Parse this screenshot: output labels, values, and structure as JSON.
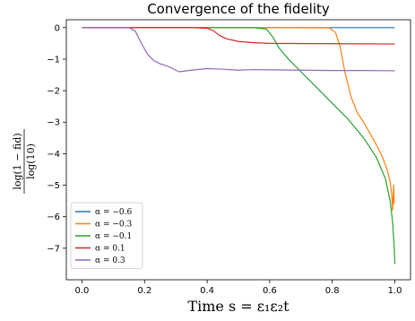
{
  "chart_data": {
    "type": "line",
    "title": "Convergence of the fidelity",
    "xlabel": "Time s = ε₁ε₂t",
    "ylabel_num": "log(1 − fid)",
    "ylabel_den": "log(10)",
    "xlim": [
      -0.05,
      1.05
    ],
    "ylim": [
      -8.0,
      0.25
    ],
    "xticks": [
      0.0,
      0.2,
      0.4,
      0.6,
      0.8,
      1.0
    ],
    "xtick_labels": [
      "0.0",
      "0.2",
      "0.4",
      "0.6",
      "0.8",
      "1.0"
    ],
    "yticks": [
      0,
      -1,
      -2,
      -3,
      -4,
      -5,
      -6,
      -7
    ],
    "ytick_labels": [
      "0",
      "−1",
      "−2",
      "−3",
      "−4",
      "−5",
      "−6",
      "−7"
    ],
    "grid": false,
    "legend_position": "lower-left",
    "series": [
      {
        "name": "α = −0.6",
        "color": "#1f77b4",
        "points": [
          [
            0.0,
            0.0
          ],
          [
            0.2,
            0.0
          ],
          [
            0.4,
            0.0
          ],
          [
            0.6,
            0.0
          ],
          [
            0.8,
            0.0
          ],
          [
            1.0,
            0.0
          ]
        ]
      },
      {
        "name": "α = −0.3",
        "color": "#ff7f0e",
        "points": [
          [
            0.0,
            0.0
          ],
          [
            0.6,
            0.0
          ],
          [
            0.79,
            -0.01
          ],
          [
            0.81,
            -0.15
          ],
          [
            0.825,
            -0.6
          ],
          [
            0.84,
            -1.4
          ],
          [
            0.86,
            -2.2
          ],
          [
            0.88,
            -2.7
          ],
          [
            0.9,
            -3.0
          ],
          [
            0.92,
            -3.35
          ],
          [
            0.94,
            -3.7
          ],
          [
            0.96,
            -4.1
          ],
          [
            0.975,
            -4.5
          ],
          [
            0.985,
            -4.9
          ],
          [
            0.99,
            -5.3
          ],
          [
            0.993,
            -5.8
          ],
          [
            0.996,
            -5.0
          ],
          [
            0.998,
            -5.6
          ]
        ]
      },
      {
        "name": "α = −0.1",
        "color": "#2ca02c",
        "points": [
          [
            0.0,
            0.0
          ],
          [
            0.55,
            0.0
          ],
          [
            0.59,
            -0.05
          ],
          [
            0.61,
            -0.3
          ],
          [
            0.63,
            -0.65
          ],
          [
            0.66,
            -1.0
          ],
          [
            0.7,
            -1.4
          ],
          [
            0.75,
            -1.9
          ],
          [
            0.8,
            -2.4
          ],
          [
            0.85,
            -2.9
          ],
          [
            0.9,
            -3.5
          ],
          [
            0.94,
            -4.1
          ],
          [
            0.97,
            -4.8
          ],
          [
            0.985,
            -5.5
          ],
          [
            0.993,
            -6.2
          ],
          [
            0.998,
            -7.0
          ],
          [
            1.0,
            -7.5
          ]
        ]
      },
      {
        "name": "α = 0.1",
        "color": "#d62728",
        "points": [
          [
            0.0,
            0.0
          ],
          [
            0.35,
            0.0
          ],
          [
            0.4,
            -0.02
          ],
          [
            0.42,
            -0.1
          ],
          [
            0.44,
            -0.25
          ],
          [
            0.46,
            -0.35
          ],
          [
            0.5,
            -0.44
          ],
          [
            0.55,
            -0.48
          ],
          [
            0.6,
            -0.5
          ],
          [
            0.8,
            -0.51
          ],
          [
            1.0,
            -0.52
          ]
        ]
      },
      {
        "name": "α = 0.3",
        "color": "#9467bd",
        "points": [
          [
            0.0,
            0.0
          ],
          [
            0.15,
            0.0
          ],
          [
            0.17,
            -0.1
          ],
          [
            0.19,
            -0.5
          ],
          [
            0.21,
            -0.85
          ],
          [
            0.23,
            -1.05
          ],
          [
            0.25,
            -1.15
          ],
          [
            0.28,
            -1.25
          ],
          [
            0.31,
            -1.4
          ],
          [
            0.35,
            -1.35
          ],
          [
            0.4,
            -1.3
          ],
          [
            0.45,
            -1.32
          ],
          [
            0.5,
            -1.35
          ],
          [
            0.55,
            -1.33
          ],
          [
            0.6,
            -1.34
          ],
          [
            0.7,
            -1.35
          ],
          [
            0.8,
            -1.36
          ],
          [
            0.9,
            -1.36
          ],
          [
            1.0,
            -1.37
          ]
        ]
      }
    ]
  }
}
